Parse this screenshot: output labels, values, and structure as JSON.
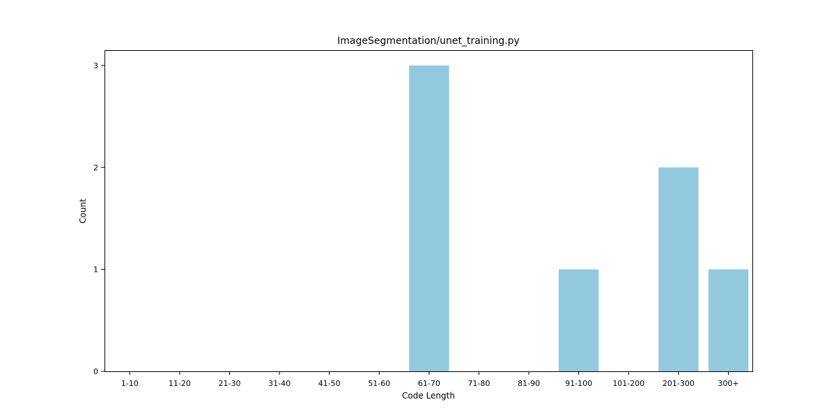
{
  "chart_data": {
    "type": "bar",
    "title": "ImageSegmentation/unet_training.py",
    "xlabel": "Code Length",
    "ylabel": "Count",
    "categories": [
      "1-10",
      "11-20",
      "21-30",
      "31-40",
      "41-50",
      "51-60",
      "61-70",
      "71-80",
      "81-90",
      "91-100",
      "101-200",
      "201-300",
      "300+"
    ],
    "values": [
      0,
      0,
      0,
      0,
      0,
      0,
      3,
      0,
      0,
      1,
      0,
      2,
      1
    ],
    "ylim": [
      0,
      3.15
    ],
    "yticks": [
      0,
      1,
      2,
      3
    ],
    "grid": false,
    "bar_color": "#92C9DF"
  }
}
